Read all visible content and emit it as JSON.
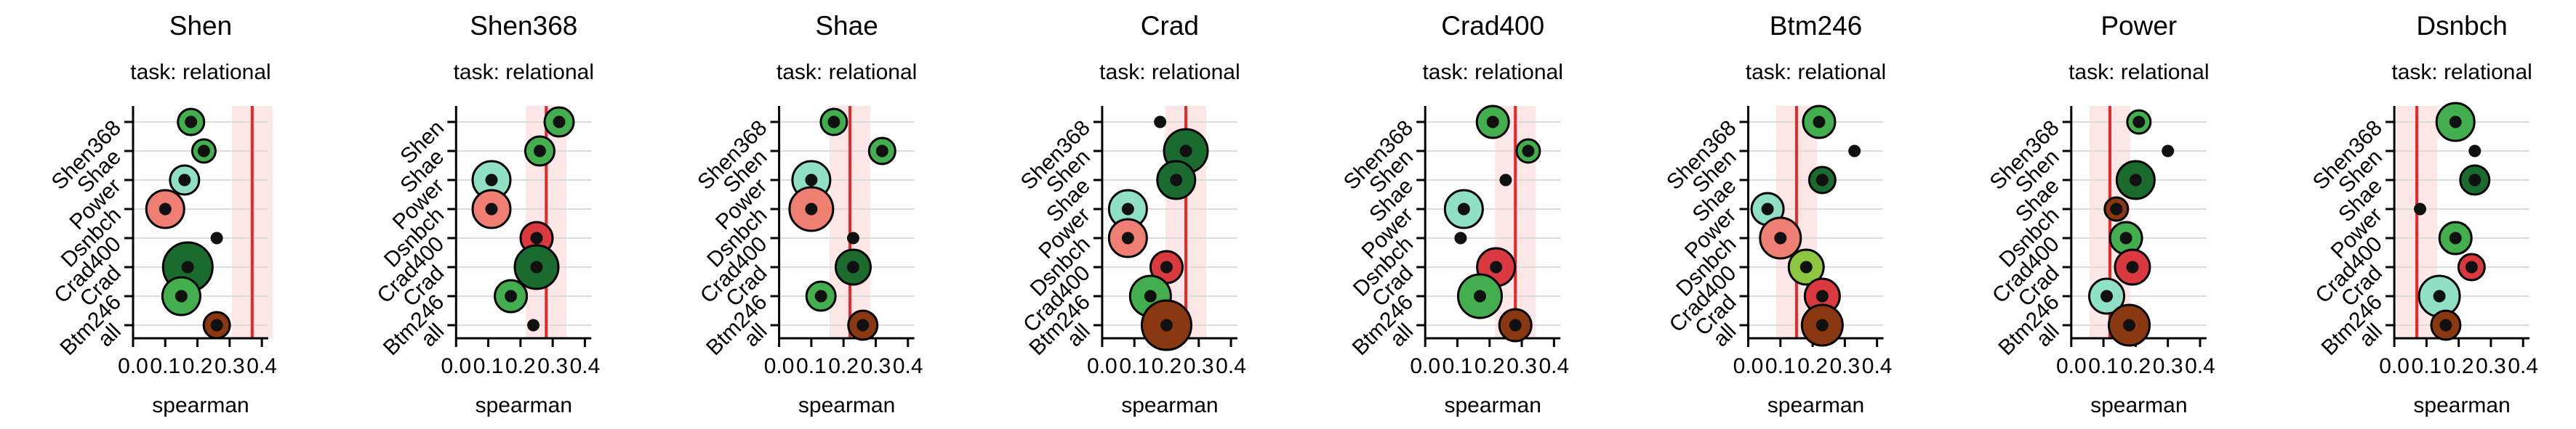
{
  "chart_data": [
    {
      "type": "scatter",
      "title": "Shen",
      "subtitle": "task: relational",
      "xlabel": "spearman",
      "xlim": [
        0,
        0.42
      ],
      "xticks": [
        "0.0",
        "0.1",
        "0.2",
        "0.3",
        "0.4"
      ],
      "categories": [
        "Shen368",
        "Shae",
        "Power",
        "Dsnbch",
        "Crad400",
        "Crad",
        "Btm246",
        "all"
      ],
      "values": [
        0.18,
        0.22,
        0.16,
        0.1,
        0.26,
        0.17,
        0.15,
        0.26
      ],
      "sizes": [
        0.5,
        0.4,
        0.6,
        0.9,
        0.2,
        1.3,
        0.9,
        0.5
      ],
      "colors": [
        "#42ae4e",
        "#42ae4e",
        "#8fe0c4",
        "#ef7f72",
        "#222222",
        "#1b6a2e",
        "#42ae4e",
        "#8a3812"
      ],
      "reference_value": 0.37
    },
    {
      "type": "scatter",
      "title": "Shen368",
      "subtitle": "task: relational",
      "xlabel": "spearman",
      "xlim": [
        0,
        0.42
      ],
      "xticks": [
        "0.0",
        "0.1",
        "0.2",
        "0.3",
        "0.4"
      ],
      "categories": [
        "Shen",
        "Shae",
        "Power",
        "Dsnbch",
        "Crad400",
        "Crad",
        "Btm246",
        "all"
      ],
      "values": [
        0.32,
        0.26,
        0.11,
        0.11,
        0.25,
        0.25,
        0.17,
        0.24
      ],
      "sizes": [
        0.6,
        0.6,
        0.9,
        0.9,
        0.7,
        1.1,
        0.7,
        0.2
      ],
      "colors": [
        "#42ae4e",
        "#42ae4e",
        "#8fe0c4",
        "#ef7f72",
        "#d9393f",
        "#1b6a2e",
        "#42ae4e",
        "#222222"
      ],
      "reference_value": 0.28
    },
    {
      "type": "scatter",
      "title": "Shae",
      "subtitle": "task: relational",
      "xlabel": "spearman",
      "xlim": [
        0,
        0.42
      ],
      "xticks": [
        "0.0",
        "0.1",
        "0.2",
        "0.3",
        "0.4"
      ],
      "categories": [
        "Shen368",
        "Shen",
        "Power",
        "Dsnbch",
        "Crad400",
        "Crad",
        "Btm246",
        "all"
      ],
      "values": [
        0.17,
        0.32,
        0.1,
        0.1,
        0.23,
        0.23,
        0.13,
        0.26
      ],
      "sizes": [
        0.5,
        0.5,
        0.9,
        1.1,
        0.2,
        0.8,
        0.6,
        0.6
      ],
      "colors": [
        "#42ae4e",
        "#42ae4e",
        "#8fe0c4",
        "#ef7f72",
        "#222222",
        "#1b6a2e",
        "#42ae4e",
        "#8a3812"
      ],
      "reference_value": 0.22
    },
    {
      "type": "scatter",
      "title": "Crad",
      "subtitle": "task: relational",
      "xlabel": "spearman",
      "xlim": [
        0,
        0.42
      ],
      "xticks": [
        "0.0",
        "0.1",
        "0.2",
        "0.3",
        "0.4"
      ],
      "categories": [
        "Shen368",
        "Shen",
        "Shae",
        "Power",
        "Dsnbch",
        "Crad400",
        "Btm246",
        "all"
      ],
      "values": [
        0.18,
        0.26,
        0.23,
        0.08,
        0.08,
        0.2,
        0.15,
        0.2
      ],
      "sizes": [
        0.2,
        1.1,
        0.9,
        0.9,
        0.9,
        0.7,
        1.0,
        1.3
      ],
      "colors": [
        "#222222",
        "#1b6a2e",
        "#1b6a2e",
        "#8fe0c4",
        "#ef7f72",
        "#d9393f",
        "#42ae4e",
        "#8a3812"
      ],
      "reference_value": 0.26
    },
    {
      "type": "scatter",
      "title": "Crad400",
      "subtitle": "task: relational",
      "xlabel": "spearman",
      "xlim": [
        0,
        0.42
      ],
      "xticks": [
        "0.0",
        "0.1",
        "0.2",
        "0.3",
        "0.4"
      ],
      "categories": [
        "Shen368",
        "Shen",
        "Shae",
        "Power",
        "Dsnbch",
        "Crad",
        "Btm246",
        "all"
      ],
      "values": [
        0.21,
        0.32,
        0.25,
        0.12,
        0.11,
        0.22,
        0.17,
        0.28
      ],
      "sizes": [
        0.7,
        0.4,
        0.2,
        0.9,
        0.2,
        0.9,
        1.1,
        0.7
      ],
      "colors": [
        "#42ae4e",
        "#42ae4e",
        "#222222",
        "#8fe0c4",
        "#222222",
        "#d9393f",
        "#42ae4e",
        "#8a3812"
      ],
      "reference_value": 0.28
    },
    {
      "type": "scatter",
      "title": "Btm246",
      "subtitle": "task: relational",
      "xlabel": "spearman",
      "xlim": [
        0,
        0.42
      ],
      "xticks": [
        "0.0",
        "0.1",
        "0.2",
        "0.3",
        "0.4"
      ],
      "categories": [
        "Shen368",
        "Shen",
        "Shae",
        "Power",
        "Dsnbch",
        "Crad400",
        "Crad",
        "all"
      ],
      "values": [
        0.22,
        0.33,
        0.23,
        0.06,
        0.1,
        0.18,
        0.23,
        0.23
      ],
      "sizes": [
        0.7,
        0.2,
        0.5,
        0.7,
        1.0,
        0.8,
        0.8,
        1.0
      ],
      "colors": [
        "#42ae4e",
        "#222222",
        "#1b6a2e",
        "#8fe0c4",
        "#ef7f72",
        "#8cc63f",
        "#d9393f",
        "#8a3812"
      ],
      "reference_value": 0.15
    },
    {
      "type": "scatter",
      "title": "Power",
      "subtitle": "task: relational",
      "xlabel": "spearman",
      "xlim": [
        0,
        0.42
      ],
      "xticks": [
        "0.0",
        "0.1",
        "0.2",
        "0.3",
        "0.4"
      ],
      "categories": [
        "Shen368",
        "Shen",
        "Shae",
        "Dsnbch",
        "Crad400",
        "Crad",
        "Btm246",
        "all"
      ],
      "values": [
        0.21,
        0.3,
        0.2,
        0.14,
        0.17,
        0.19,
        0.11,
        0.18
      ],
      "sizes": [
        0.4,
        0.2,
        0.9,
        0.4,
        0.7,
        0.8,
        0.8,
        1.0
      ],
      "colors": [
        "#42ae4e",
        "#222222",
        "#1b6a2e",
        "#8a3812",
        "#42ae4e",
        "#d9393f",
        "#8fe0c4",
        "#8a3812"
      ],
      "reference_value": 0.12
    },
    {
      "type": "scatter",
      "title": "Dsnbch",
      "subtitle": "task: relational",
      "xlabel": "spearman",
      "xlim": [
        0,
        0.42
      ],
      "xticks": [
        "0.0",
        "0.1",
        "0.2",
        "0.3",
        "0.4"
      ],
      "categories": [
        "Shen368",
        "Shen",
        "Shae",
        "Power",
        "Crad400",
        "Crad",
        "Btm246",
        "all"
      ],
      "values": [
        0.19,
        0.25,
        0.25,
        0.08,
        0.19,
        0.24,
        0.14,
        0.16
      ],
      "sizes": [
        0.9,
        0.2,
        0.6,
        0.2,
        0.7,
        0.5,
        1.0,
        0.6
      ],
      "colors": [
        "#42ae4e",
        "#222222",
        "#1b6a2e",
        "#222222",
        "#42ae4e",
        "#d9393f",
        "#8fe0c4",
        "#8a3812"
      ],
      "reference_value": 0.07
    }
  ]
}
